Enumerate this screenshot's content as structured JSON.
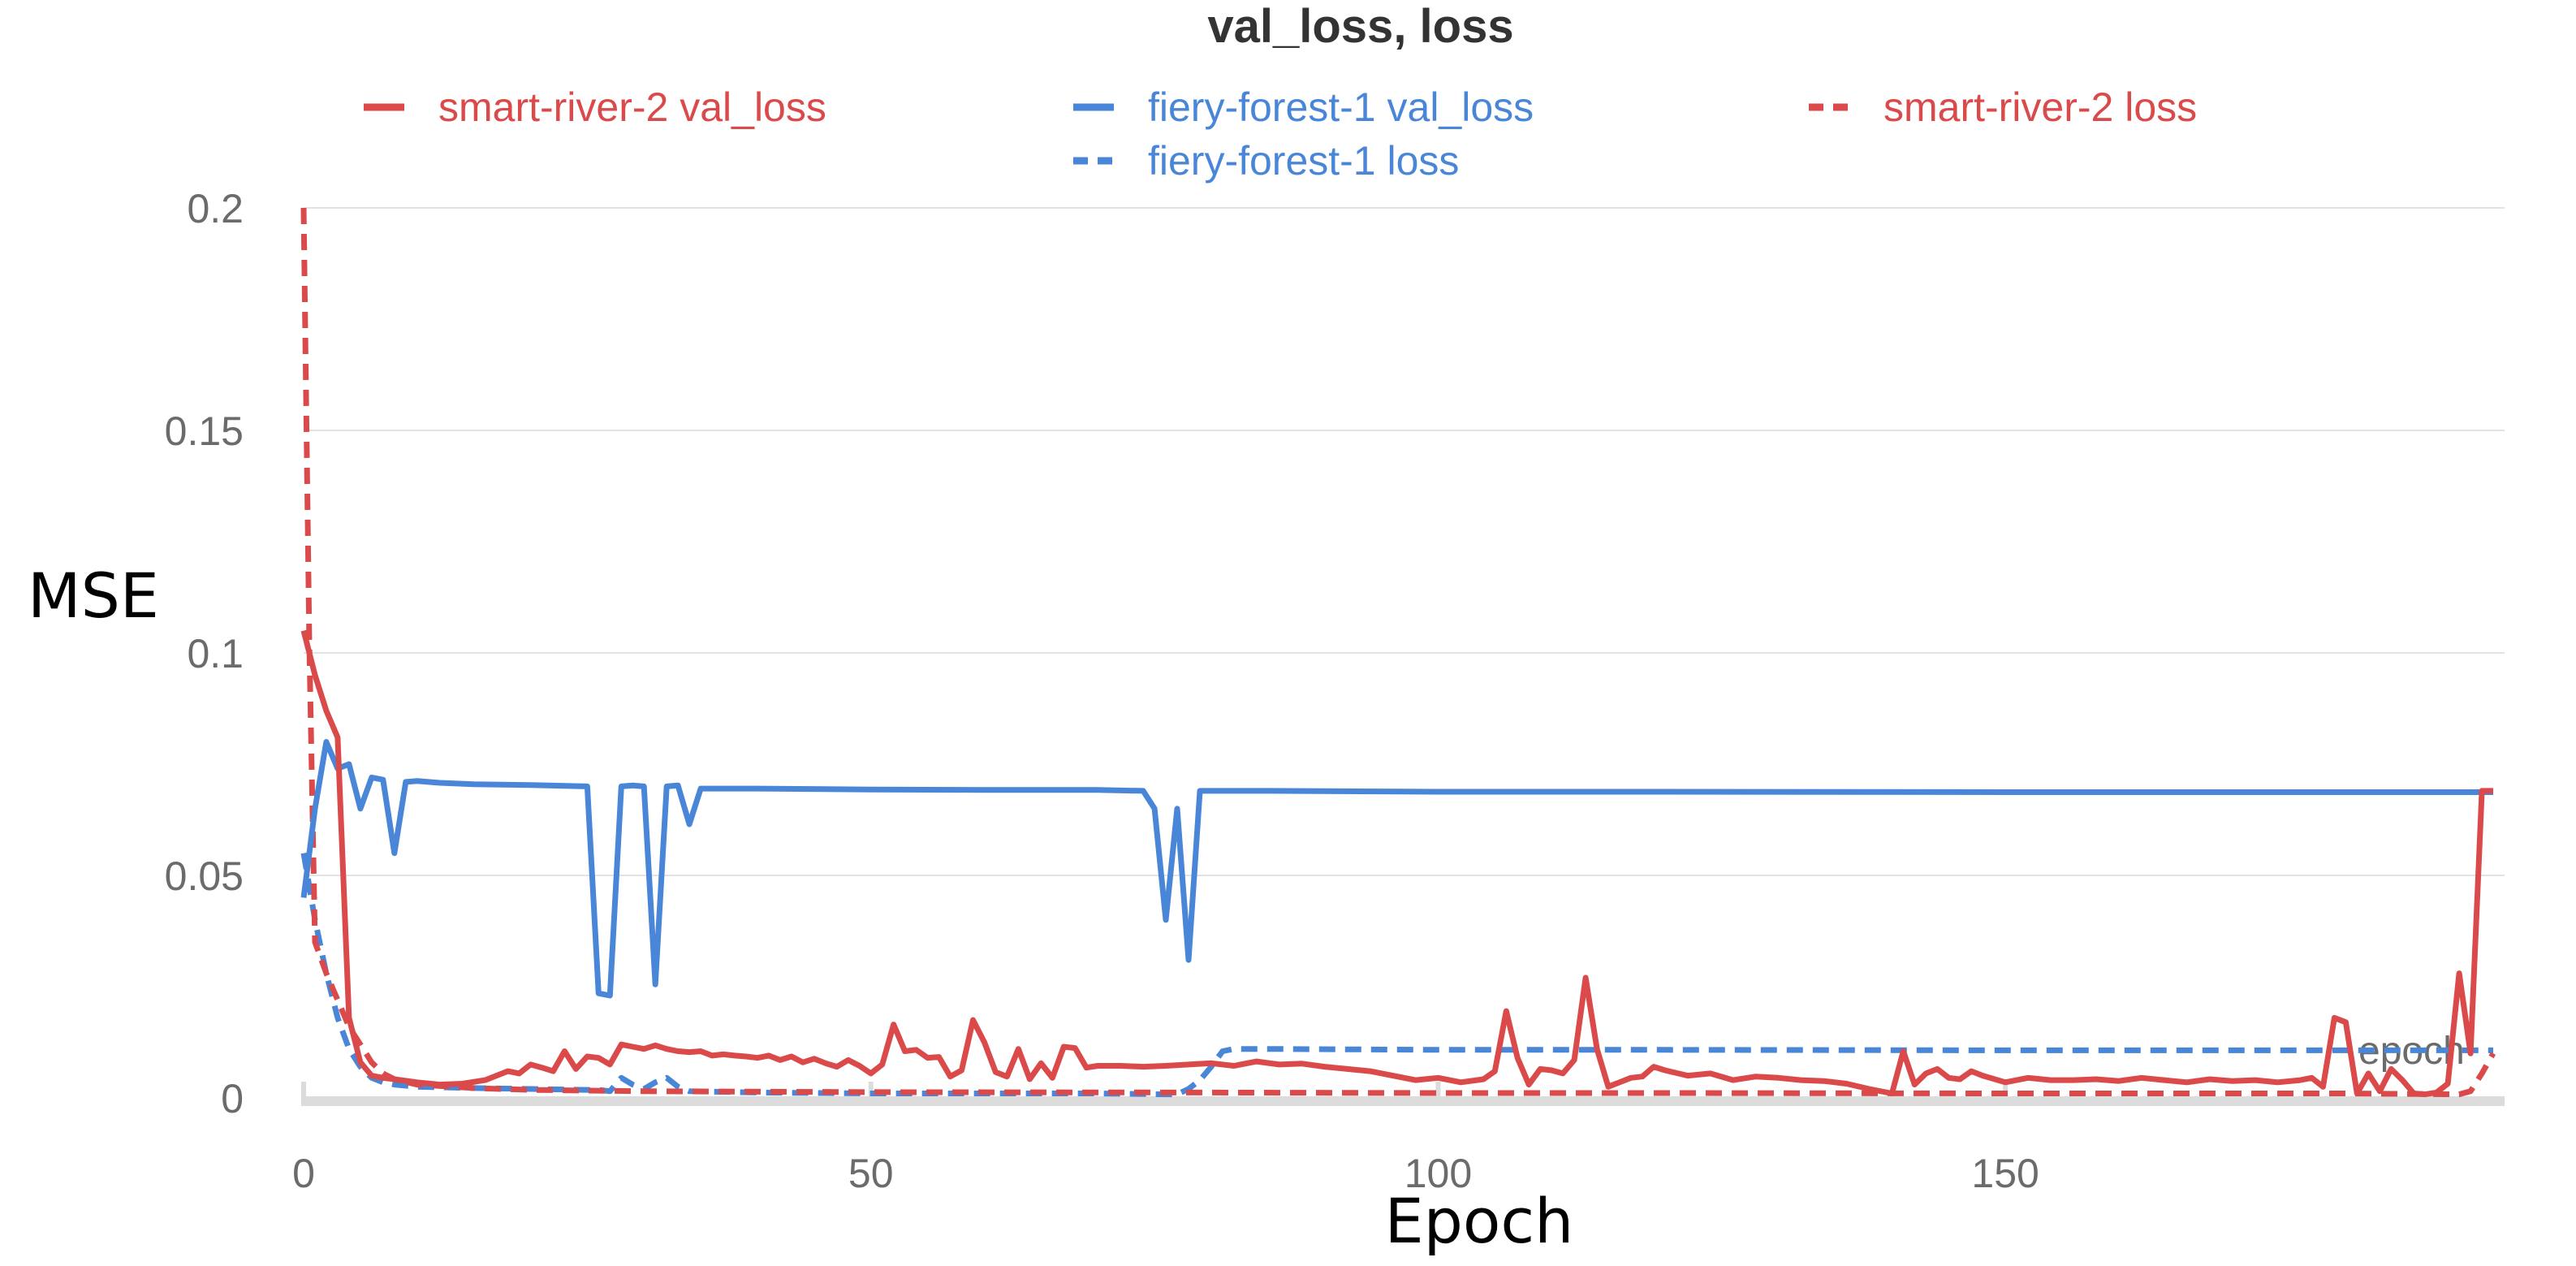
{
  "chart_data": {
    "type": "line",
    "title": "val_loss, loss",
    "xlabel": "Epoch",
    "ylabel": "MSE",
    "x_axis_watermark": "epoch",
    "xlim": [
      0,
      194
    ],
    "ylim": [
      0,
      0.2
    ],
    "xticks": [
      0,
      50,
      100,
      150
    ],
    "yticks": [
      0,
      0.05,
      0.1,
      0.15,
      0.2
    ],
    "xtick_labels": [
      "0",
      "50",
      "100",
      "150"
    ],
    "ytick_labels": [
      "0",
      "0.05",
      "0.1",
      "0.15",
      "0.2"
    ],
    "grid": true,
    "legend_position": "top",
    "series": [
      {
        "name": "smart-river-2 val_loss",
        "color": "#db4a4a",
        "dash": "solid",
        "x": [
          0,
          1,
          2,
          3,
          4,
          5,
          6,
          7,
          8,
          10,
          12,
          14,
          16,
          18,
          19,
          20,
          21,
          22,
          23,
          24,
          25,
          26,
          27,
          28,
          29,
          30,
          31,
          32,
          33,
          34,
          35,
          36,
          37,
          38,
          39,
          40,
          41,
          42,
          43,
          44,
          45,
          46,
          47,
          48,
          49,
          50,
          51,
          52,
          53,
          54,
          55,
          56,
          57,
          58,
          59,
          60,
          61,
          62,
          63,
          64,
          65,
          66,
          67,
          68,
          69,
          70,
          72,
          74,
          76,
          78,
          80,
          82,
          84,
          86,
          88,
          90,
          92,
          94,
          96,
          98,
          100,
          102,
          104,
          105,
          106,
          107,
          108,
          109,
          110,
          111,
          112,
          113,
          114,
          115,
          116,
          117,
          118,
          119,
          120,
          122,
          124,
          126,
          128,
          130,
          132,
          134,
          136,
          138,
          140,
          141,
          142,
          143,
          144,
          145,
          146,
          147,
          148,
          150,
          152,
          154,
          156,
          158,
          160,
          162,
          164,
          166,
          168,
          170,
          172,
          174,
          176,
          177,
          178,
          179,
          180,
          181,
          182,
          183,
          184,
          185,
          186,
          187,
          188,
          189,
          190,
          191,
          192,
          193
        ],
        "y": [
          0.105,
          0.095,
          0.087,
          0.081,
          0.018,
          0.008,
          0.005,
          0.0045,
          0.0042,
          0.0035,
          0.003,
          0.0032,
          0.004,
          0.006,
          0.0055,
          0.0075,
          0.0068,
          0.006,
          0.0105,
          0.0065,
          0.0093,
          0.009,
          0.0075,
          0.012,
          0.0115,
          0.011,
          0.0118,
          0.011,
          0.0105,
          0.0103,
          0.0105,
          0.0095,
          0.0098,
          0.0095,
          0.0093,
          0.009,
          0.0095,
          0.0085,
          0.0093,
          0.008,
          0.0088,
          0.0078,
          0.007,
          0.0085,
          0.0072,
          0.0055,
          0.0075,
          0.0165,
          0.0105,
          0.0108,
          0.009,
          0.0092,
          0.0048,
          0.0062,
          0.0175,
          0.0125,
          0.0058,
          0.0048,
          0.011,
          0.0042,
          0.0078,
          0.0045,
          0.0115,
          0.0112,
          0.0068,
          0.0072,
          0.0072,
          0.007,
          0.0072,
          0.0075,
          0.0078,
          0.0072,
          0.0082,
          0.0075,
          0.0077,
          0.007,
          0.0065,
          0.006,
          0.005,
          0.004,
          0.0045,
          0.0035,
          0.0042,
          0.006,
          0.0195,
          0.009,
          0.003,
          0.0065,
          0.0062,
          0.0055,
          0.0085,
          0.027,
          0.011,
          0.0025,
          0.0035,
          0.0045,
          0.0048,
          0.007,
          0.0062,
          0.005,
          0.0055,
          0.004,
          0.0048,
          0.0045,
          0.004,
          0.0038,
          0.0032,
          0.002,
          0.001,
          0.0105,
          0.003,
          0.0055,
          0.0065,
          0.0045,
          0.0042,
          0.006,
          0.005,
          0.0035,
          0.0045,
          0.004,
          0.004,
          0.0042,
          0.0038,
          0.0045,
          0.004,
          0.0035,
          0.0042,
          0.0038,
          0.004,
          0.0035,
          0.004,
          0.0045,
          0.0025,
          0.018,
          0.017,
          0.001,
          0.0055,
          0.0015,
          0.0065,
          0.004,
          0.001,
          0.0008,
          0.0012,
          0.0032,
          0.028,
          0.01,
          0.069,
          0.069
        ]
      },
      {
        "name": "fiery-forest-1 val_loss",
        "color": "#4a86d8",
        "dash": "solid",
        "x": [
          0,
          1,
          2,
          3,
          4,
          5,
          6,
          7,
          8,
          9,
          10,
          12,
          15,
          20,
          25,
          26,
          27,
          28,
          29,
          30,
          31,
          32,
          33,
          34,
          35,
          36,
          40,
          50,
          60,
          70,
          74,
          75,
          76,
          77,
          78,
          79,
          80,
          81,
          85,
          100,
          120,
          150,
          180,
          193
        ],
        "y": [
          0.045,
          0.065,
          0.08,
          0.074,
          0.075,
          0.065,
          0.072,
          0.0715,
          0.055,
          0.071,
          0.0712,
          0.0708,
          0.0705,
          0.0703,
          0.07,
          0.0235,
          0.023,
          0.07,
          0.0702,
          0.07,
          0.0255,
          0.07,
          0.0702,
          0.0615,
          0.0695,
          0.0695,
          0.0695,
          0.0693,
          0.0692,
          0.0692,
          0.069,
          0.065,
          0.04,
          0.065,
          0.031,
          0.069,
          0.069,
          0.069,
          0.069,
          0.0688,
          0.0688,
          0.0687,
          0.0687,
          0.0687
        ]
      },
      {
        "name": "smart-river-2 loss",
        "color": "#db4a4a",
        "dash": "dashed",
        "x": [
          0,
          0.5,
          1,
          2,
          3,
          4,
          5,
          6,
          7,
          8,
          10,
          15,
          20,
          30,
          50,
          80,
          100,
          120,
          150,
          180,
          190,
          191,
          192,
          193
        ],
        "y": [
          0.2,
          0.102,
          0.035,
          0.028,
          0.022,
          0.016,
          0.012,
          0.008,
          0.0055,
          0.0042,
          0.003,
          0.0022,
          0.0018,
          0.0015,
          0.0013,
          0.0012,
          0.0011,
          0.0011,
          0.001,
          0.001,
          0.0008,
          0.0015,
          0.0055,
          0.01
        ]
      },
      {
        "name": "fiery-forest-1 loss",
        "color": "#4a86d8",
        "dash": "dashed",
        "x": [
          0,
          1,
          2,
          3,
          4,
          5,
          6,
          7,
          8,
          10,
          15,
          20,
          25,
          26,
          27,
          28,
          29,
          30,
          31,
          32,
          33,
          34,
          40,
          50,
          60,
          70,
          76,
          77,
          78,
          79,
          80,
          81,
          82,
          85,
          100,
          120,
          150,
          180,
          193
        ],
        "y": [
          0.055,
          0.04,
          0.028,
          0.018,
          0.011,
          0.007,
          0.0045,
          0.0035,
          0.003,
          0.0025,
          0.0022,
          0.002,
          0.0018,
          0.0018,
          0.0015,
          0.0045,
          0.003,
          0.002,
          0.0035,
          0.0045,
          0.0025,
          0.0015,
          0.0012,
          0.001,
          0.001,
          0.001,
          0.0008,
          0.0008,
          0.002,
          0.004,
          0.007,
          0.0105,
          0.011,
          0.011,
          0.0108,
          0.0108,
          0.0107,
          0.0107,
          0.0107
        ]
      }
    ]
  }
}
